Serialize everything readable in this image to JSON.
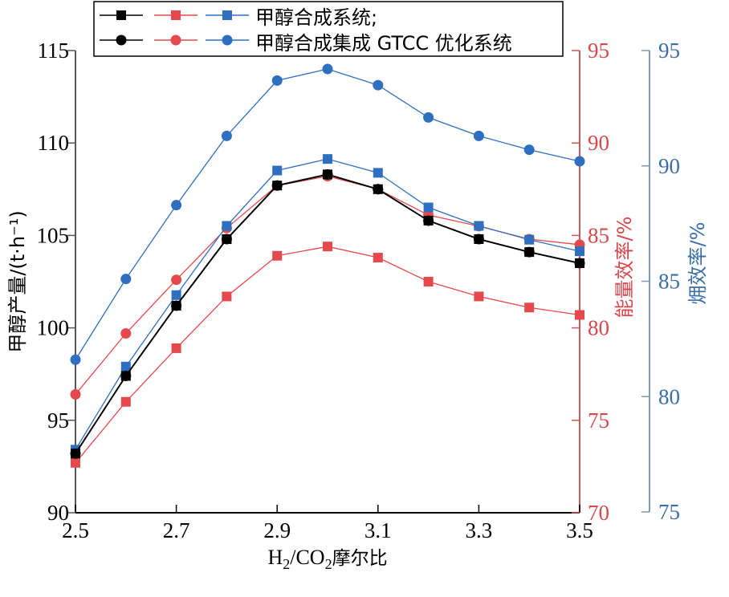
{
  "chart_data": {
    "type": "line",
    "title": "",
    "xlabel_parts": {
      "h": "H",
      "sub1": "2",
      "mid": "/CO",
      "sub2": "2",
      "tail": "摩尔比"
    },
    "x": [
      2.5,
      2.6,
      2.7,
      2.8,
      2.9,
      3.0,
      3.1,
      3.2,
      3.3,
      3.4,
      3.5
    ],
    "x_ticks": [
      2.5,
      2.7,
      2.9,
      3.1,
      3.3,
      3.5
    ],
    "x_tick_labels": [
      "2.5",
      "2.7",
      "2.9",
      "3.1",
      "3.3",
      "3.5"
    ],
    "xlim": [
      2.5,
      3.5
    ],
    "axes": {
      "left": {
        "label": "甲醇产量/(t·h⁻¹)",
        "ylim": [
          90,
          115
        ],
        "ticks": [
          90,
          95,
          100,
          105,
          110,
          115
        ],
        "tick_labels": [
          "90",
          "95",
          "100",
          "105",
          "110",
          "115"
        ],
        "color": "#000000"
      },
      "right1": {
        "label": "能量效率/%",
        "ylim": [
          70,
          95
        ],
        "ticks": [
          70,
          75,
          80,
          85,
          90,
          95
        ],
        "tick_labels": [
          "70",
          "75",
          "80",
          "85",
          "90",
          "95"
        ],
        "color": "#d9474d"
      },
      "right2": {
        "label": "㶲效率/%",
        "ylim": [
          75,
          95
        ],
        "ticks": [
          75,
          80,
          85,
          90,
          95
        ],
        "tick_labels": [
          "75",
          "80",
          "85",
          "90",
          "95"
        ],
        "color": "#3a6ea5"
      }
    },
    "legend": {
      "placement": "top-left",
      "entries": [
        {
          "label": "甲醇合成系统;",
          "marker": "square"
        },
        {
          "label": "甲醇合成集成 GTCC 优化系统",
          "marker": "circle"
        }
      ]
    },
    "series": [
      {
        "name": "甲醇产量-甲醇合成系统",
        "axis": "left",
        "marker": "square",
        "color": "#000000",
        "values": [
          93.2,
          97.4,
          101.2,
          104.8,
          107.7,
          108.3,
          107.5,
          105.8,
          104.8,
          104.1,
          103.5
        ]
      },
      {
        "name": "甲醇产量-甲醇合成集成 GTCC 优化系统",
        "axis": "left",
        "marker": "circle",
        "color": "#000000",
        "values": [
          93.2,
          97.4,
          101.2,
          104.8,
          107.7,
          108.3,
          107.5,
          105.8,
          104.8,
          104.1,
          103.5
        ]
      },
      {
        "name": "能量效率-甲醇合成系统",
        "axis": "right1",
        "marker": "square",
        "color": "#e5484d",
        "values": [
          72.7,
          76.0,
          78.9,
          81.7,
          83.9,
          84.4,
          83.8,
          82.5,
          81.7,
          81.1,
          80.7
        ]
      },
      {
        "name": "能量效率-甲醇合成集成 GTCC 优化系统",
        "axis": "right1",
        "marker": "circle",
        "color": "#e5484d",
        "values": [
          76.4,
          79.7,
          82.6,
          85.4,
          87.7,
          88.2,
          87.5,
          86.1,
          85.5,
          84.8,
          84.5
        ]
      },
      {
        "name": "㶲效率-甲醇合成系统",
        "axis": "right2",
        "marker": "square",
        "color": "#2f6fbf",
        "values": [
          77.7,
          81.3,
          84.4,
          87.4,
          89.8,
          90.3,
          89.7,
          88.2,
          87.4,
          86.8,
          86.3
        ]
      },
      {
        "name": "㶲效率-甲醇合成集成 GTCC 优化系统",
        "axis": "right2",
        "marker": "circle",
        "color": "#2f6fbf",
        "values": [
          81.6,
          85.1,
          88.3,
          91.3,
          93.7,
          94.2,
          93.5,
          92.1,
          91.3,
          90.7,
          90.2
        ]
      }
    ],
    "grid": false
  }
}
